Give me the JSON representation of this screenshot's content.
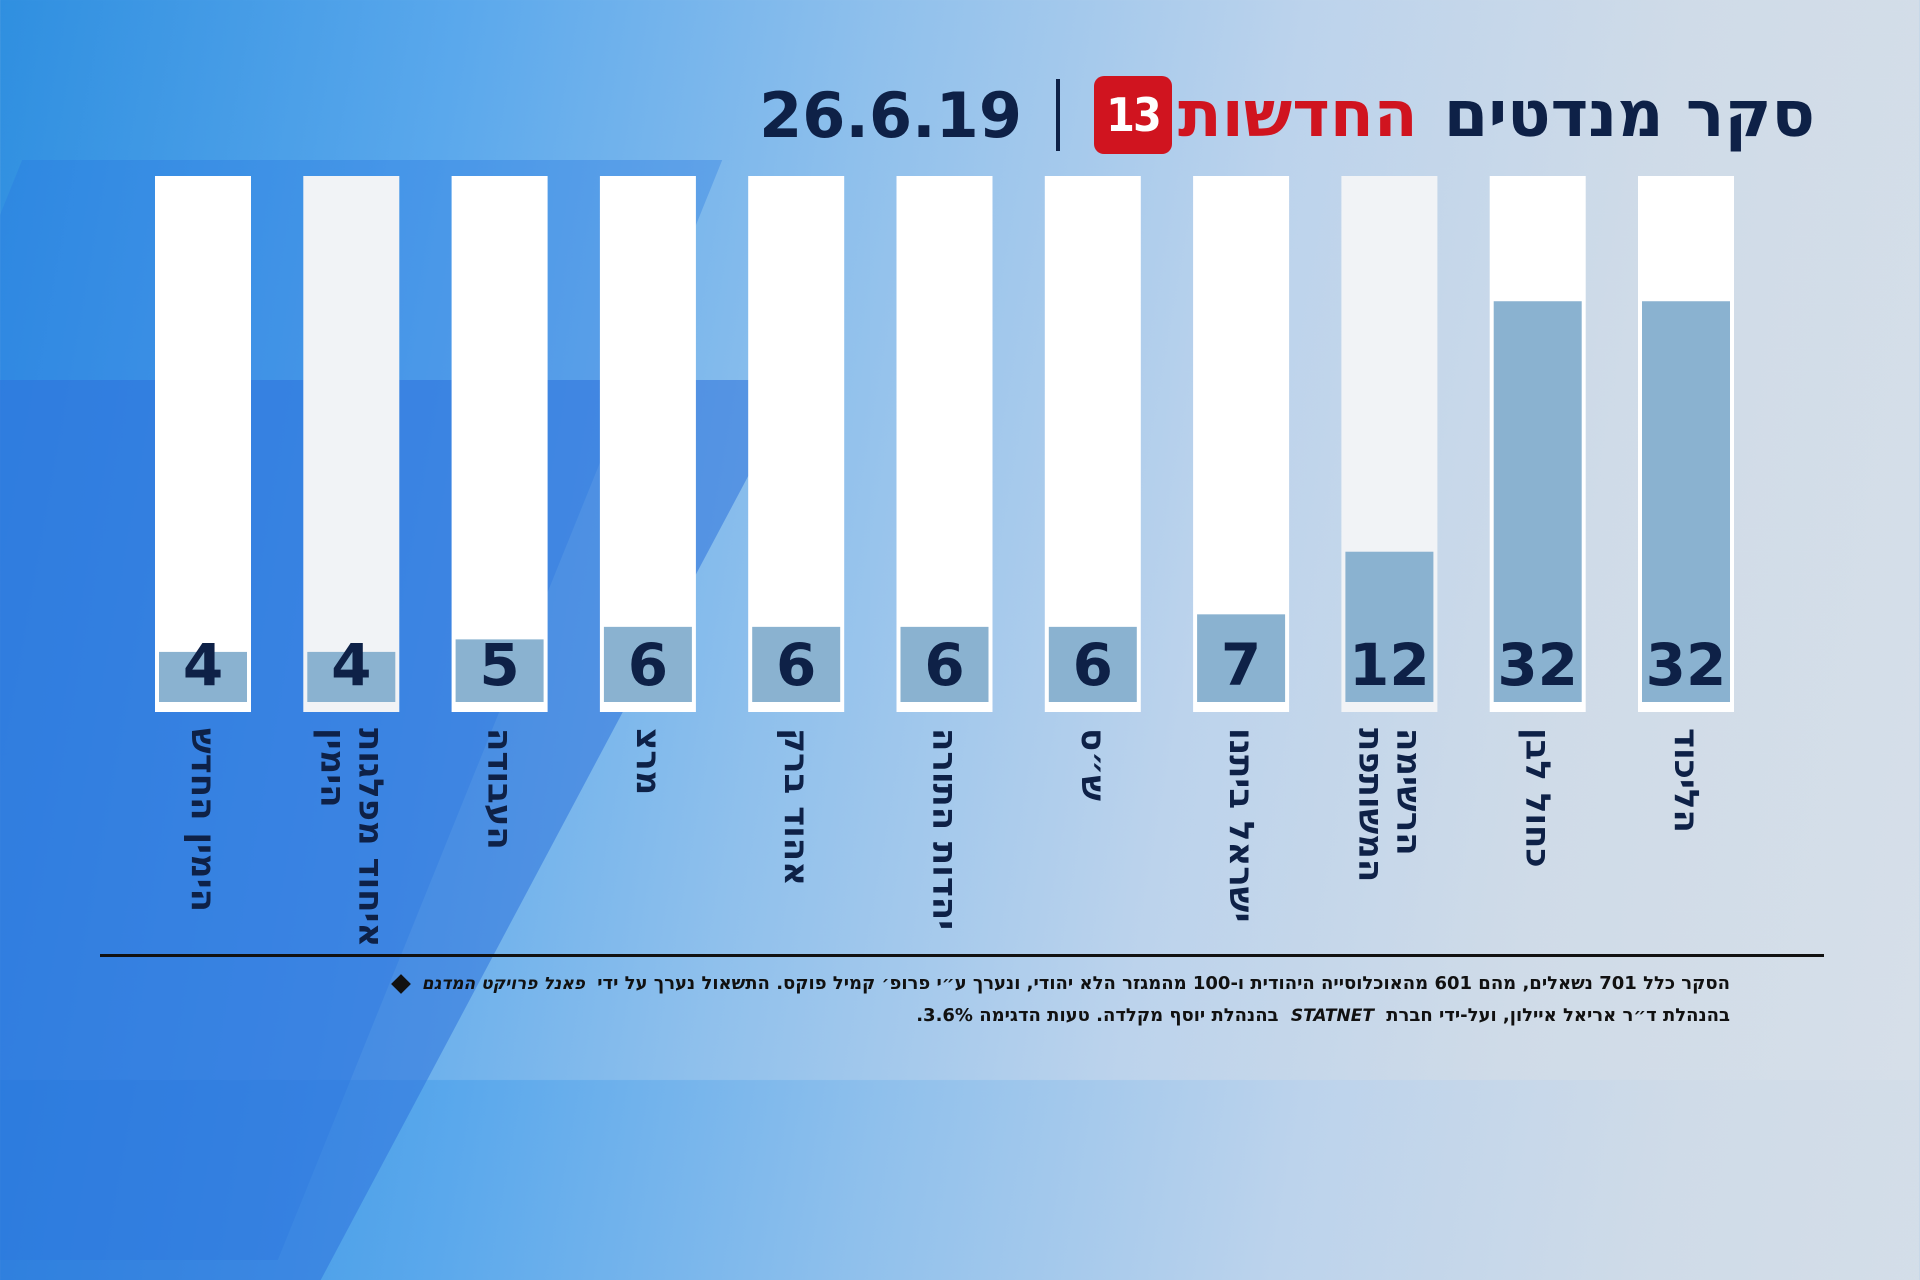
{
  "header": {
    "title": "סקר מנדטים",
    "brand": "החדשות",
    "logo_text": "13",
    "date": "26.6.19"
  },
  "colors": {
    "bar_track": "#ffffff",
    "bar_track_alt": "#f1f3f6",
    "bar_fill": "#8ab2d0",
    "text_dark": "#0e2147",
    "brand_red": "#d0141f"
  },
  "chart_data": {
    "type": "bar",
    "categories": [
      "הליכוד",
      "כחול לבן",
      "הרשימה\nהמשותפת",
      "ישראל ביתנו",
      "ש״ס",
      "יהדות התורה",
      "אהוד ברק",
      "מרצ",
      "העבודה",
      "איחוד מפלגות\nהימין",
      "הימין החדש"
    ],
    "values": [
      32,
      32,
      12,
      7,
      6,
      6,
      6,
      6,
      5,
      4,
      4
    ],
    "ylim": [
      0,
      42
    ],
    "grid": false,
    "legend": "none",
    "direction": "rtl"
  },
  "footnote": {
    "line1": "הסקר כלל 701 נשאלים, מהם 601 מהאוכלוסייה היהודית ו-100 מהמגזר הלא יהודי, ונערך ע״י פרופ׳ קמיל פוקס. התשאול  נערך על ידי",
    "line1_logo": "פאנל פרויקט המדגם",
    "line2_a": "בהנהלת ד״ר אריאל איילון, ועל-ידי חברת",
    "line2_logo": "STATNET",
    "line2_b": "בהנהלת יוסף מקלדה. טעות הדגימה 3.6%."
  }
}
